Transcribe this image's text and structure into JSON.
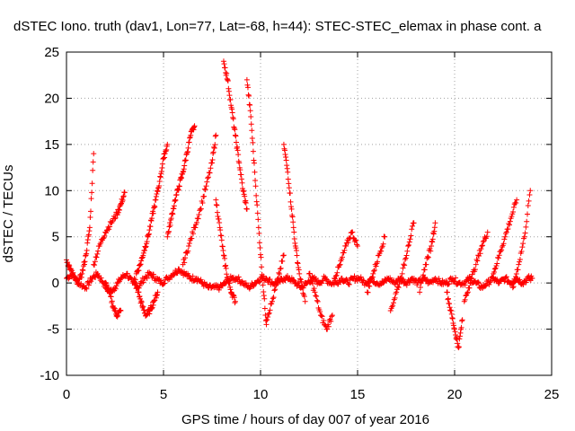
{
  "chart_data": {
    "type": "scatter",
    "title": "dSTEC Iono. truth (dav1, Lon=77, Lat=-68, h=44): STEC-STEC_elemax in phase cont. a",
    "xlabel": "GPS time / hours of day 007 of year 2016",
    "ylabel": "dSTEC  / TECUs",
    "xlim": [
      0,
      25
    ],
    "ylim": [
      -10,
      25
    ],
    "xticks": [
      "0",
      "5",
      "10",
      "15",
      "20",
      "25"
    ],
    "yticks": [
      "-10",
      "-5",
      "0",
      "5",
      "10",
      "15",
      "20",
      "25"
    ],
    "grid": true,
    "marker": "+",
    "color": "#ff0000",
    "series": [
      {
        "x": [
          0.0,
          0.3,
          0.6,
          1.0,
          1.3,
          1.6,
          1.9,
          2.2,
          2.5,
          2.8,
          3.1,
          3.4,
          3.7,
          4.0,
          4.3,
          4.6,
          4.9,
          5.2,
          5.5,
          5.8,
          6.1,
          6.4,
          6.7,
          7.0,
          7.3,
          7.6,
          7.9,
          8.2,
          8.5,
          8.8,
          9.1,
          9.4,
          9.7,
          10.0,
          10.3,
          10.6,
          10.9,
          11.2,
          11.5,
          11.8,
          12.1,
          12.4,
          12.7,
          13.0,
          13.3,
          13.6,
          13.9,
          14.2,
          14.5,
          14.8,
          15.1,
          15.4,
          15.7,
          16.0,
          16.3,
          16.6,
          16.9,
          17.2,
          17.5,
          17.8,
          18.1,
          18.4,
          18.7,
          19.0,
          19.3,
          19.6,
          19.9,
          20.2,
          20.5,
          20.8,
          21.1,
          21.4,
          21.7,
          22.0,
          22.3,
          22.6,
          22.9,
          23.2,
          23.5,
          23.8,
          24.0
        ],
        "y": [
          0.5,
          1.0,
          0.0,
          -0.5,
          0.5,
          1.0,
          0.0,
          -1.0,
          -0.5,
          0.5,
          1.0,
          0.0,
          -0.5,
          0.5,
          1.0,
          0.5,
          0.0,
          0.5,
          1.0,
          1.5,
          1.0,
          0.5,
          0.5,
          0.0,
          -0.5,
          -0.5,
          -0.5,
          0.0,
          0.5,
          0.5,
          0.0,
          -0.5,
          0.0,
          0.5,
          0.5,
          0.0,
          0.0,
          0.5,
          0.5,
          0.0,
          -0.5,
          0.0,
          0.5,
          0.0,
          0.5,
          0.0,
          0.0,
          0.5,
          0.0,
          0.5,
          0.5,
          0.0,
          0.5,
          0.0,
          0.0,
          0.5,
          0.0,
          0.5,
          0.0,
          0.5,
          0.0,
          0.5,
          0.0,
          0.5,
          0.0,
          0.0,
          0.5,
          0.0,
          0.0,
          0.5,
          0.0,
          -0.5,
          0.0,
          0.5,
          0.0,
          0.5,
          0.0,
          0.5,
          0.0,
          0.5,
          0.5
        ]
      },
      {
        "x": [
          0.0,
          0.2,
          0.4,
          0.6,
          0.8,
          1.0,
          1.2,
          1.4
        ],
        "y": [
          2.5,
          1.5,
          0.5,
          0.0,
          1.0,
          3.0,
          6.0,
          14.0
        ]
      },
      {
        "x": [
          1.4,
          1.7,
          2.0,
          2.3,
          2.6,
          2.8,
          3.0
        ],
        "y": [
          2.0,
          4.0,
          5.5,
          6.5,
          7.5,
          8.5,
          9.8
        ]
      },
      {
        "x": [
          2.0,
          2.2,
          2.4,
          2.6,
          2.8
        ],
        "y": [
          0.0,
          -1.0,
          -2.5,
          -3.5,
          -3.0
        ]
      },
      {
        "x": [
          3.5,
          3.7,
          3.9,
          4.1,
          4.3,
          4.5,
          4.7
        ],
        "y": [
          0.5,
          -1.0,
          -2.5,
          -3.5,
          -3.0,
          -2.0,
          -1.0
        ]
      },
      {
        "x": [
          3.6,
          3.8,
          4.0,
          4.2,
          4.4,
          4.6,
          4.8,
          5.0,
          5.2
        ],
        "y": [
          1.0,
          2.0,
          3.5,
          5.0,
          7.0,
          9.0,
          11.0,
          13.5,
          15.0
        ]
      },
      {
        "x": [
          5.2,
          5.4,
          5.6,
          5.8,
          6.0,
          6.2,
          6.4,
          6.6
        ],
        "y": [
          5.0,
          7.0,
          9.0,
          10.5,
          12.0,
          14.0,
          16.0,
          17.0
        ]
      },
      {
        "x": [
          6.0,
          6.3,
          6.6,
          6.9,
          7.2,
          7.5,
          7.7
        ],
        "y": [
          2.0,
          4.0,
          6.0,
          8.0,
          10.5,
          13.0,
          16.0
        ]
      },
      {
        "x": [
          7.7,
          7.9,
          8.1,
          8.3,
          8.5,
          8.7
        ],
        "y": [
          9.0,
          6.0,
          3.0,
          0.5,
          -1.0,
          -2.0
        ]
      },
      {
        "x": [
          8.1,
          8.3,
          8.5,
          8.7,
          8.9,
          9.1,
          9.3
        ],
        "y": [
          24.0,
          22.0,
          19.0,
          16.0,
          13.0,
          10.0,
          8.0
        ]
      },
      {
        "x": [
          9.3,
          9.5,
          9.7,
          9.9,
          10.1,
          10.3
        ],
        "y": [
          22.0,
          18.0,
          12.0,
          6.0,
          0.5,
          -4.5
        ]
      },
      {
        "x": [
          10.3,
          10.6,
          10.9,
          11.2
        ],
        "y": [
          -4.0,
          -2.0,
          0.5,
          3.0
        ]
      },
      {
        "x": [
          11.2,
          11.4,
          11.6,
          11.8,
          12.0,
          12.3
        ],
        "y": [
          15.0,
          12.0,
          8.0,
          4.0,
          1.0,
          -2.0
        ]
      },
      {
        "x": [
          12.5,
          12.8,
          13.1,
          13.4,
          13.7
        ],
        "y": [
          1.0,
          -1.0,
          -3.5,
          -5.0,
          -3.5
        ]
      },
      {
        "x": [
          13.8,
          14.1,
          14.4,
          14.7,
          15.0
        ],
        "y": [
          0.5,
          2.0,
          4.0,
          5.5,
          4.0
        ]
      },
      {
        "x": [
          15.5,
          15.8,
          16.1,
          16.4
        ],
        "y": [
          -1.0,
          1.0,
          3.0,
          5.0
        ]
      },
      {
        "x": [
          16.7,
          17.0,
          17.3,
          17.6,
          17.9
        ],
        "y": [
          -3.0,
          -1.0,
          1.0,
          4.0,
          6.5
        ]
      },
      {
        "x": [
          18.2,
          18.5,
          18.8,
          19.0
        ],
        "y": [
          -1.0,
          2.0,
          4.0,
          6.5
        ]
      },
      {
        "x": [
          19.6,
          19.8,
          20.0,
          20.2,
          20.4
        ],
        "y": [
          -1.0,
          -3.0,
          -5.0,
          -7.0,
          -4.0
        ]
      },
      {
        "x": [
          20.5,
          20.8,
          21.1,
          21.4,
          21.7
        ],
        "y": [
          -2.0,
          0.0,
          2.0,
          4.0,
          5.5
        ]
      },
      {
        "x": [
          22.0,
          22.3,
          22.6,
          22.9,
          23.2
        ],
        "y": [
          1.0,
          3.0,
          5.0,
          7.0,
          9.0
        ]
      },
      {
        "x": [
          23.0,
          23.3,
          23.6,
          23.9
        ],
        "y": [
          -0.5,
          2.0,
          5.0,
          10.0
        ]
      }
    ]
  }
}
